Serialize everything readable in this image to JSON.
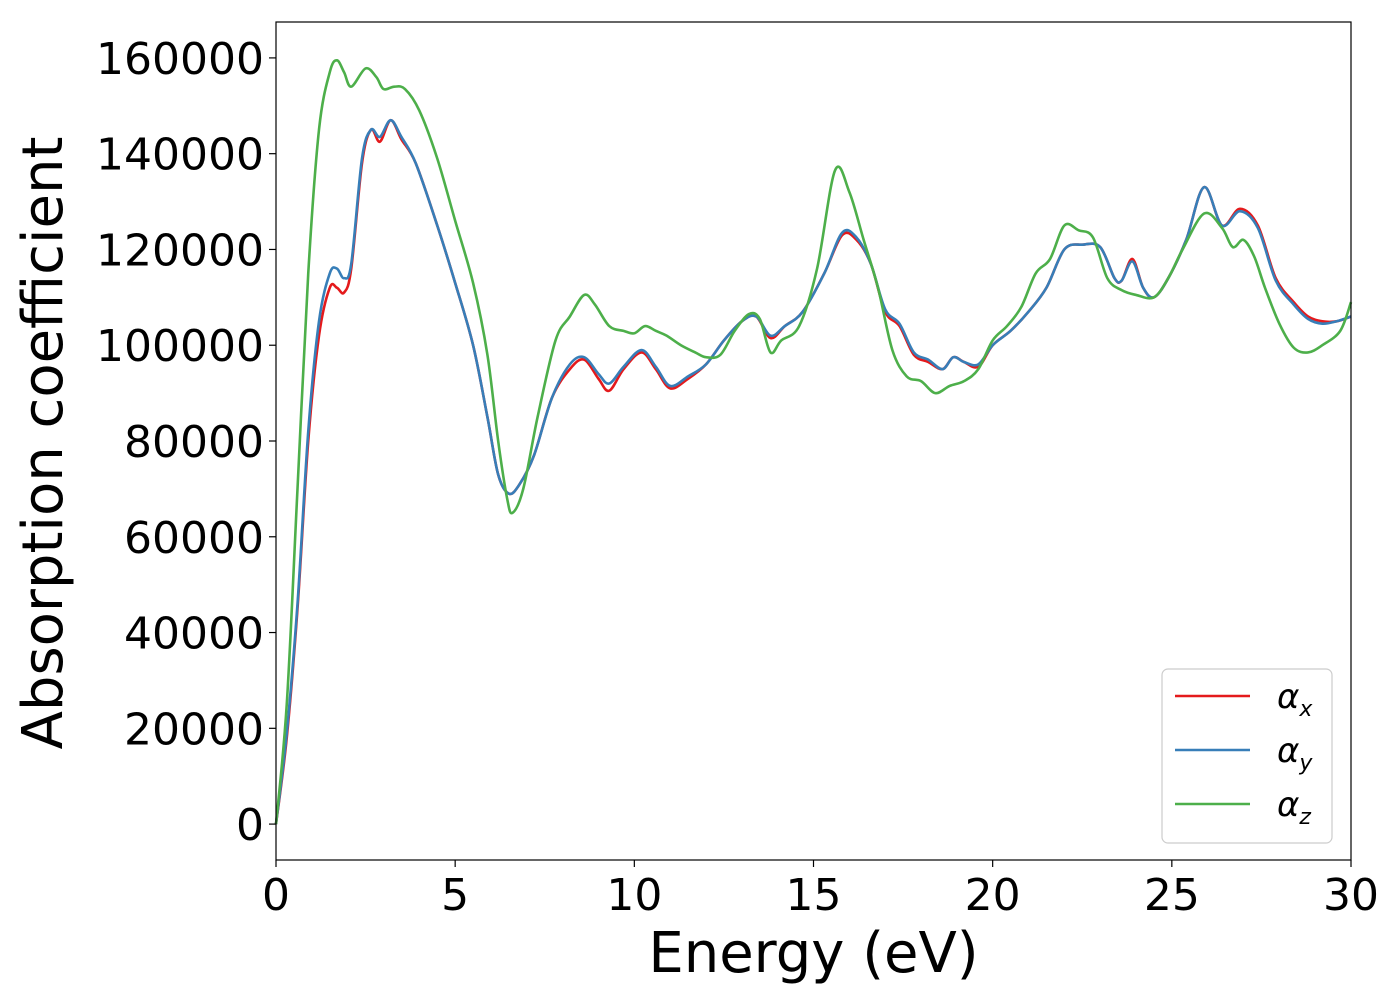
{
  "chart_data": {
    "type": "line",
    "xlabel": "Energy (eV)",
    "ylabel": "Absorption coefficient",
    "xlim": [
      0,
      30
    ],
    "ylim": [
      -7500,
      167500
    ],
    "xticks": [
      0,
      5,
      10,
      15,
      20,
      25,
      30
    ],
    "yticks": [
      0,
      20000,
      40000,
      60000,
      80000,
      100000,
      120000,
      140000,
      160000
    ],
    "grid": false,
    "legend_position": "lower-right",
    "series": [
      {
        "name": "α_x",
        "legend_base": "α",
        "legend_sub": "x",
        "color": "#e41a1c",
        "points": [
          [
            0,
            0
          ],
          [
            0.3,
            18000
          ],
          [
            0.6,
            45000
          ],
          [
            0.9,
            80000
          ],
          [
            1.2,
            102000
          ],
          [
            1.5,
            112000
          ],
          [
            1.7,
            112000
          ],
          [
            1.9,
            111000
          ],
          [
            2.1,
            116000
          ],
          [
            2.4,
            138000
          ],
          [
            2.65,
            145000
          ],
          [
            2.9,
            142500
          ],
          [
            3.2,
            147000
          ],
          [
            3.5,
            143000
          ],
          [
            3.9,
            138000
          ],
          [
            4.5,
            125000
          ],
          [
            5.0,
            113000
          ],
          [
            5.5,
            100000
          ],
          [
            5.9,
            85000
          ],
          [
            6.2,
            73000
          ],
          [
            6.5,
            69000
          ],
          [
            6.8,
            71000
          ],
          [
            7.2,
            77000
          ],
          [
            7.7,
            89000
          ],
          [
            8.2,
            95000
          ],
          [
            8.6,
            97000
          ],
          [
            9.0,
            93000
          ],
          [
            9.3,
            90500
          ],
          [
            9.7,
            95000
          ],
          [
            10.2,
            98500
          ],
          [
            10.6,
            95000
          ],
          [
            11.0,
            91000
          ],
          [
            11.5,
            93000
          ],
          [
            12.0,
            96000
          ],
          [
            12.5,
            101000
          ],
          [
            13.0,
            105000
          ],
          [
            13.4,
            106000
          ],
          [
            13.8,
            101500
          ],
          [
            14.2,
            104000
          ],
          [
            14.7,
            107000
          ],
          [
            15.3,
            115000
          ],
          [
            15.8,
            123000
          ],
          [
            16.2,
            122000
          ],
          [
            16.6,
            117000
          ],
          [
            17.0,
            107000
          ],
          [
            17.4,
            104000
          ],
          [
            17.8,
            98000
          ],
          [
            18.2,
            96500
          ],
          [
            18.6,
            95000
          ],
          [
            18.9,
            97500
          ],
          [
            19.2,
            96500
          ],
          [
            19.6,
            95500
          ],
          [
            20.0,
            100000
          ],
          [
            20.5,
            103000
          ],
          [
            21.0,
            107000
          ],
          [
            21.5,
            112000
          ],
          [
            22.0,
            120000
          ],
          [
            22.5,
            121000
          ],
          [
            23.0,
            120500
          ],
          [
            23.4,
            114000
          ],
          [
            23.6,
            113500
          ],
          [
            23.9,
            118000
          ],
          [
            24.2,
            112000
          ],
          [
            24.5,
            110000
          ],
          [
            24.9,
            114000
          ],
          [
            25.4,
            122000
          ],
          [
            25.9,
            133000
          ],
          [
            26.4,
            125000
          ],
          [
            26.9,
            128500
          ],
          [
            27.4,
            125000
          ],
          [
            27.9,
            114000
          ],
          [
            28.4,
            109000
          ],
          [
            28.8,
            106000
          ],
          [
            29.2,
            105000
          ],
          [
            29.6,
            105000
          ],
          [
            30.0,
            106000
          ]
        ]
      },
      {
        "name": "α_y",
        "legend_base": "α",
        "legend_sub": "y",
        "color": "#377eb8",
        "points": [
          [
            0,
            0
          ],
          [
            0.3,
            19000
          ],
          [
            0.6,
            46000
          ],
          [
            0.9,
            82000
          ],
          [
            1.2,
            105000
          ],
          [
            1.5,
            115000
          ],
          [
            1.7,
            116000
          ],
          [
            1.9,
            114000
          ],
          [
            2.1,
            117000
          ],
          [
            2.4,
            139000
          ],
          [
            2.65,
            145000
          ],
          [
            2.9,
            143500
          ],
          [
            3.2,
            147000
          ],
          [
            3.5,
            143500
          ],
          [
            3.9,
            138000
          ],
          [
            4.5,
            125000
          ],
          [
            5.0,
            113000
          ],
          [
            5.5,
            100000
          ],
          [
            5.9,
            85000
          ],
          [
            6.2,
            73000
          ],
          [
            6.5,
            69000
          ],
          [
            6.8,
            71000
          ],
          [
            7.2,
            77000
          ],
          [
            7.7,
            89000
          ],
          [
            8.2,
            96000
          ],
          [
            8.6,
            97500
          ],
          [
            9.0,
            94000
          ],
          [
            9.3,
            92000
          ],
          [
            9.7,
            95500
          ],
          [
            10.2,
            99000
          ],
          [
            10.6,
            95500
          ],
          [
            11.0,
            91500
          ],
          [
            11.5,
            93500
          ],
          [
            12.0,
            96000
          ],
          [
            12.5,
            101000
          ],
          [
            13.0,
            105000
          ],
          [
            13.4,
            106000
          ],
          [
            13.8,
            102000
          ],
          [
            14.2,
            104000
          ],
          [
            14.7,
            107000
          ],
          [
            15.3,
            115000
          ],
          [
            15.8,
            123500
          ],
          [
            16.2,
            122500
          ],
          [
            16.6,
            117000
          ],
          [
            17.0,
            107500
          ],
          [
            17.4,
            104500
          ],
          [
            17.8,
            98500
          ],
          [
            18.2,
            97000
          ],
          [
            18.6,
            95000
          ],
          [
            18.9,
            97500
          ],
          [
            19.2,
            96500
          ],
          [
            19.6,
            96000
          ],
          [
            20.0,
            100000
          ],
          [
            20.5,
            103000
          ],
          [
            21.0,
            107000
          ],
          [
            21.5,
            112000
          ],
          [
            22.0,
            120000
          ],
          [
            22.5,
            121000
          ],
          [
            23.0,
            120500
          ],
          [
            23.4,
            114000
          ],
          [
            23.6,
            113500
          ],
          [
            23.9,
            117500
          ],
          [
            24.2,
            112000
          ],
          [
            24.5,
            110000
          ],
          [
            24.9,
            114000
          ],
          [
            25.4,
            122000
          ],
          [
            25.9,
            133000
          ],
          [
            26.4,
            125000
          ],
          [
            26.9,
            128000
          ],
          [
            27.4,
            124500
          ],
          [
            27.9,
            113500
          ],
          [
            28.4,
            108500
          ],
          [
            28.8,
            105500
          ],
          [
            29.2,
            104500
          ],
          [
            29.6,
            105000
          ],
          [
            30.0,
            106000
          ]
        ]
      },
      {
        "name": "α_z",
        "legend_base": "α",
        "legend_sub": "z",
        "color": "#4daf4a",
        "points": [
          [
            0,
            0
          ],
          [
            0.3,
            25000
          ],
          [
            0.6,
            70000
          ],
          [
            0.9,
            115000
          ],
          [
            1.2,
            145000
          ],
          [
            1.5,
            157000
          ],
          [
            1.7,
            159500
          ],
          [
            1.9,
            157000
          ],
          [
            2.1,
            154000
          ],
          [
            2.5,
            157800
          ],
          [
            2.8,
            156000
          ],
          [
            3.0,
            153500
          ],
          [
            3.3,
            154000
          ],
          [
            3.6,
            153500
          ],
          [
            4.0,
            149000
          ],
          [
            4.5,
            139000
          ],
          [
            5.0,
            126000
          ],
          [
            5.5,
            113000
          ],
          [
            5.9,
            98000
          ],
          [
            6.2,
            80000
          ],
          [
            6.45,
            68000
          ],
          [
            6.6,
            65000
          ],
          [
            6.9,
            70000
          ],
          [
            7.3,
            85000
          ],
          [
            7.8,
            101000
          ],
          [
            8.2,
            106000
          ],
          [
            8.6,
            110500
          ],
          [
            8.9,
            108500
          ],
          [
            9.3,
            104000
          ],
          [
            9.7,
            103000
          ],
          [
            10.0,
            102500
          ],
          [
            10.3,
            104000
          ],
          [
            10.6,
            103000
          ],
          [
            10.9,
            102000
          ],
          [
            11.3,
            100000
          ],
          [
            11.7,
            98500
          ],
          [
            12.0,
            97500
          ],
          [
            12.4,
            98000
          ],
          [
            12.8,
            103000
          ],
          [
            13.2,
            106500
          ],
          [
            13.5,
            105500
          ],
          [
            13.8,
            98500
          ],
          [
            14.1,
            101000
          ],
          [
            14.6,
            104000
          ],
          [
            15.1,
            116000
          ],
          [
            15.6,
            136500
          ],
          [
            16.0,
            132000
          ],
          [
            16.4,
            122000
          ],
          [
            16.8,
            112000
          ],
          [
            17.2,
            99000
          ],
          [
            17.6,
            93500
          ],
          [
            18.0,
            92500
          ],
          [
            18.4,
            90000
          ],
          [
            18.8,
            91500
          ],
          [
            19.2,
            92500
          ],
          [
            19.6,
            95000
          ],
          [
            20.0,
            101000
          ],
          [
            20.4,
            104000
          ],
          [
            20.8,
            108000
          ],
          [
            21.2,
            115000
          ],
          [
            21.6,
            118000
          ],
          [
            22.0,
            125000
          ],
          [
            22.4,
            124000
          ],
          [
            22.8,
            122500
          ],
          [
            23.2,
            114000
          ],
          [
            23.6,
            111500
          ],
          [
            24.0,
            110500
          ],
          [
            24.5,
            110000
          ],
          [
            24.9,
            114000
          ],
          [
            25.3,
            120000
          ],
          [
            25.9,
            127500
          ],
          [
            26.4,
            124500
          ],
          [
            26.7,
            120500
          ],
          [
            27.0,
            122000
          ],
          [
            27.3,
            118500
          ],
          [
            27.6,
            112000
          ],
          [
            28.0,
            104500
          ],
          [
            28.4,
            99500
          ],
          [
            28.8,
            98500
          ],
          [
            29.2,
            100000
          ],
          [
            29.7,
            103000
          ],
          [
            30.0,
            109000
          ]
        ]
      }
    ]
  }
}
